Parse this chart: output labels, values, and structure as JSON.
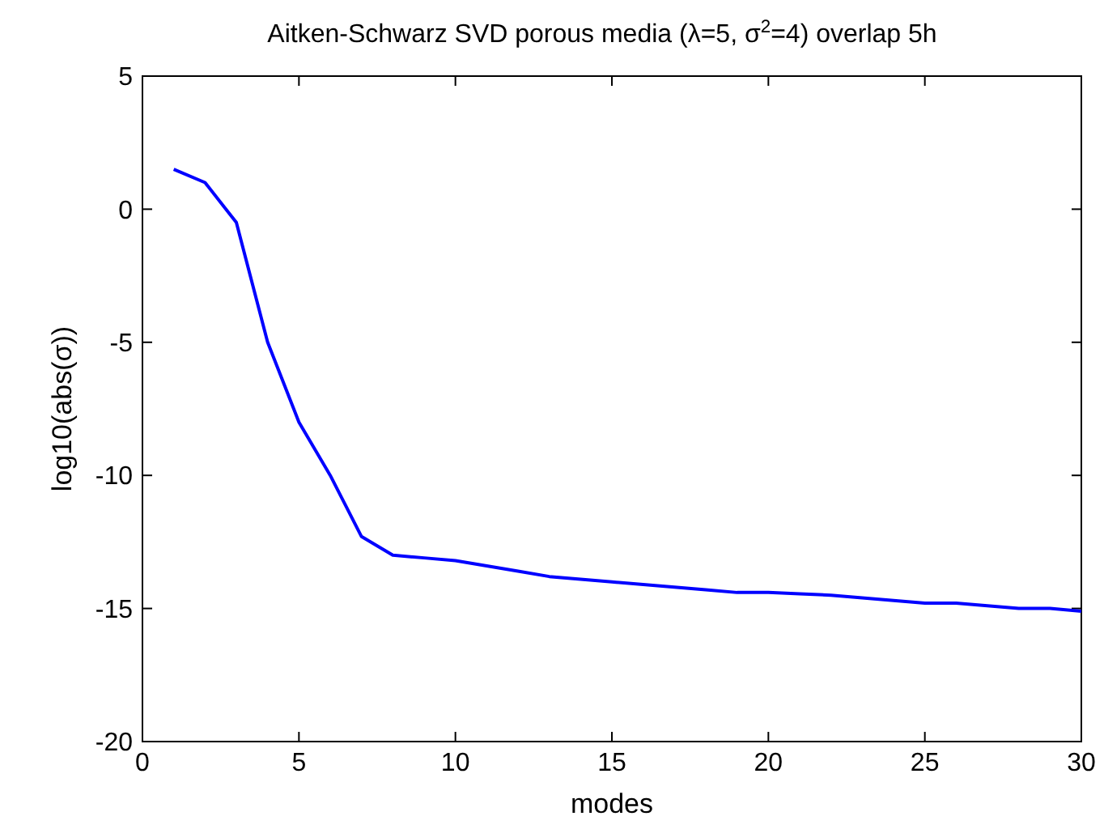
{
  "chart_data": {
    "type": "line",
    "title": "Aitken-Schwarz SVD porous media (λ=5, σ$^{2}$=4) overlap 5h",
    "xlabel": "modes",
    "ylabel": "log10(abs(σ))",
    "x": [
      1,
      2,
      3,
      4,
      5,
      6,
      7,
      8,
      9,
      10,
      11,
      12,
      13,
      14,
      15,
      16,
      17,
      18,
      19,
      20,
      21,
      22,
      23,
      24,
      25,
      26,
      27,
      28,
      29,
      30
    ],
    "series": [
      {
        "color": "#0000ff",
        "values": [
          1.5,
          1,
          -0.5,
          -5,
          -8,
          -10,
          -12.3,
          -13,
          -13.1,
          -13.2,
          -13.4,
          -13.6,
          -13.8,
          -13.9,
          -14,
          -14.1,
          -14.2,
          -14.3,
          -14.4,
          -14.4,
          -14.45,
          -14.5,
          -14.6,
          -14.7,
          -14.8,
          -14.8,
          -14.9,
          -15,
          -15,
          -15.1
        ]
      }
    ],
    "xlim": [
      0,
      30
    ],
    "ylim": [
      -20,
      5
    ],
    "xticks": [
      0,
      5,
      10,
      15,
      20,
      25,
      30
    ],
    "yticks": [
      -20,
      -15,
      -10,
      -5,
      0,
      5
    ],
    "grid": false,
    "marker": "none",
    "line_style": "solid"
  }
}
